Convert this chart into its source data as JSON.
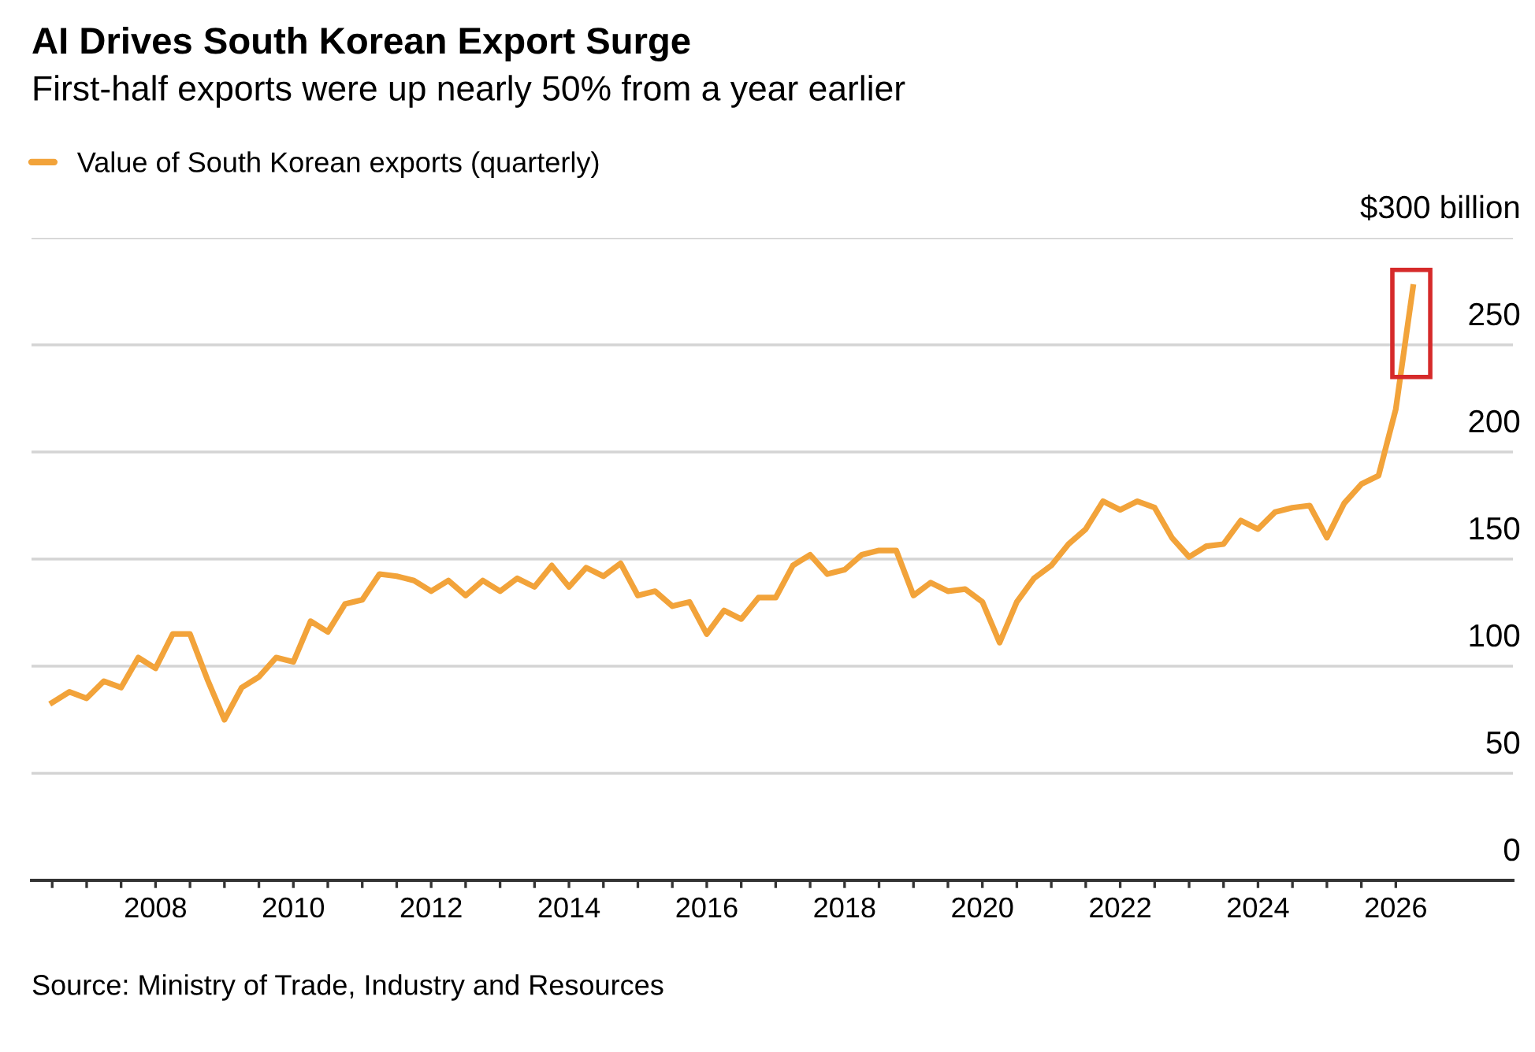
{
  "chart_data": {
    "type": "line",
    "title": "AI Drives South Korean Export Surge",
    "subtitle": "First-half exports were up nearly 50% from a year earlier",
    "x": [
      2006.5,
      2006.75,
      2007.0,
      2007.25,
      2007.5,
      2007.75,
      2008.0,
      2008.25,
      2008.5,
      2008.75,
      2009.0,
      2009.25,
      2009.5,
      2009.75,
      2010.0,
      2010.25,
      2010.5,
      2010.75,
      2011.0,
      2011.25,
      2011.5,
      2011.75,
      2012.0,
      2012.25,
      2012.5,
      2012.75,
      2013.0,
      2013.25,
      2013.5,
      2013.75,
      2014.0,
      2014.25,
      2014.5,
      2014.75,
      2015.0,
      2015.25,
      2015.5,
      2015.75,
      2016.0,
      2016.25,
      2016.5,
      2016.75,
      2017.0,
      2017.25,
      2017.5,
      2017.75,
      2018.0,
      2018.25,
      2018.5,
      2018.75,
      2019.0,
      2019.25,
      2019.5,
      2019.75,
      2020.0,
      2020.25,
      2020.5,
      2020.75,
      2021.0,
      2021.25,
      2021.5,
      2021.75,
      2022.0,
      2022.25,
      2022.5,
      2022.75,
      2023.0,
      2023.25,
      2023.5,
      2023.75,
      2024.0,
      2024.25,
      2024.5,
      2024.75,
      2025.0,
      2025.25,
      2025.5,
      2025.75,
      2026.0,
      2026.25
    ],
    "series": [
      {
        "name": "Value of South Korean exports (quarterly)",
        "color": "#f2a33a",
        "values": [
          83,
          88,
          85,
          93,
          90,
          104,
          99,
          115,
          115,
          94,
          75,
          90,
          95,
          104,
          102,
          121,
          116,
          129,
          131,
          143,
          142,
          140,
          135,
          140,
          133,
          140,
          135,
          141,
          137,
          147,
          137,
          146,
          142,
          148,
          133,
          135,
          128,
          130,
          115,
          126,
          122,
          132,
          132,
          147,
          152,
          143,
          145,
          152,
          154,
          154,
          133,
          139,
          135,
          136,
          130,
          111,
          130,
          141,
          147,
          157,
          164,
          177,
          173,
          177,
          174,
          160,
          151,
          156,
          157,
          168,
          164,
          172,
          174,
          175,
          160,
          176,
          185,
          189,
          220,
          277
        ]
      }
    ],
    "xlim": [
      2006.2,
      2027.7
    ],
    "ylim": [
      0,
      300
    ],
    "xticks": [
      {
        "value": 2006.5,
        "label": null
      },
      {
        "value": 2007,
        "label": null
      },
      {
        "value": 2007.5,
        "label": null
      },
      2008,
      {
        "value": 2008.5,
        "label": null
      },
      {
        "value": 2009,
        "label": null
      },
      {
        "value": 2009.5,
        "label": null
      },
      2010,
      {
        "value": 2010.5,
        "label": null
      },
      {
        "value": 2011,
        "label": null
      },
      {
        "value": 2011.5,
        "label": null
      },
      2012,
      {
        "value": 2012.5,
        "label": null
      },
      {
        "value": 2013,
        "label": null
      },
      {
        "value": 2013.5,
        "label": null
      },
      2014,
      {
        "value": 2014.5,
        "label": null
      },
      {
        "value": 2015,
        "label": null
      },
      {
        "value": 2015.5,
        "label": null
      },
      2016,
      {
        "value": 2016.5,
        "label": null
      },
      {
        "value": 2017,
        "label": null
      },
      {
        "value": 2017.5,
        "label": null
      },
      2018,
      {
        "value": 2018.5,
        "label": null
      },
      {
        "value": 2019,
        "label": null
      },
      {
        "value": 2019.5,
        "label": null
      },
      2020,
      {
        "value": 2020.5,
        "label": null
      },
      {
        "value": 2021,
        "label": null
      },
      {
        "value": 2021.5,
        "label": null
      },
      2022,
      {
        "value": 2022.5,
        "label": null
      },
      {
        "value": 2023,
        "label": null
      },
      {
        "value": 2023.5,
        "label": null
      },
      2024,
      {
        "value": 2024.5,
        "label": null
      },
      {
        "value": 2025,
        "label": null
      },
      {
        "value": 2025.5,
        "label": null
      },
      2026
    ],
    "yticks": [
      0,
      50,
      100,
      150,
      200,
      250,
      {
        "value": 300,
        "label": "$300 billion"
      }
    ],
    "grid": "y",
    "legend": "top left",
    "marker": "none",
    "line_style": "solid",
    "annotations": [
      "Source: Ministry of Trade, Industry and Resources"
    ]
  }
}
